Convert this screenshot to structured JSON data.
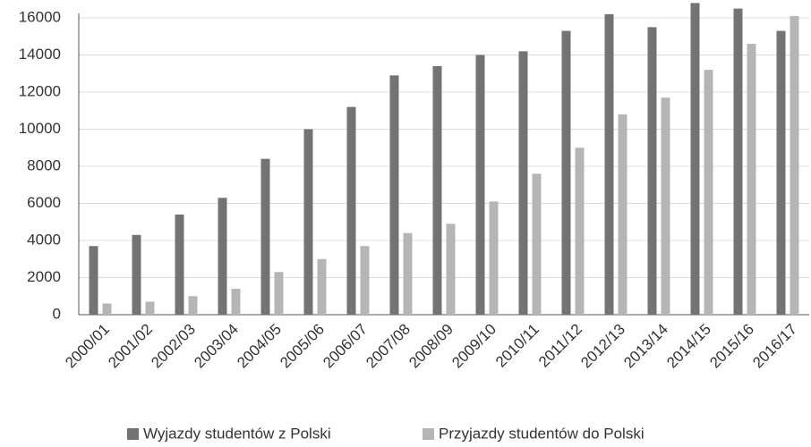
{
  "chart_data": {
    "type": "bar",
    "categories": [
      "2000/01",
      "2001/02",
      "2002/03",
      "2003/04",
      "2004/05",
      "2005/06",
      "2006/07",
      "2007/08",
      "2008/09",
      "2009/10",
      "2010/11",
      "2011/12",
      "2012/13",
      "2013/14",
      "2014/15",
      "2015/16",
      "2016/17"
    ],
    "series": [
      {
        "name": "Wyjazdy studentów z Polski",
        "color": "#737373",
        "values": [
          3700,
          4300,
          5400,
          6300,
          8400,
          10000,
          11200,
          12900,
          13400,
          14000,
          14200,
          15300,
          16200,
          15500,
          16800,
          16500,
          15300
        ]
      },
      {
        "name": "Przyjazdy studentów do Polski",
        "color": "#b5b5b5",
        "values": [
          600,
          700,
          1000,
          1400,
          2300,
          3000,
          3700,
          4400,
          4900,
          6100,
          7600,
          9000,
          10800,
          11700,
          13200,
          14600,
          16100
        ]
      }
    ],
    "ylim": [
      0,
      16000
    ],
    "yticks": [
      0,
      2000,
      4000,
      6000,
      8000,
      10000,
      12000,
      14000,
      16000
    ],
    "grid": true,
    "legend": "bottom"
  }
}
